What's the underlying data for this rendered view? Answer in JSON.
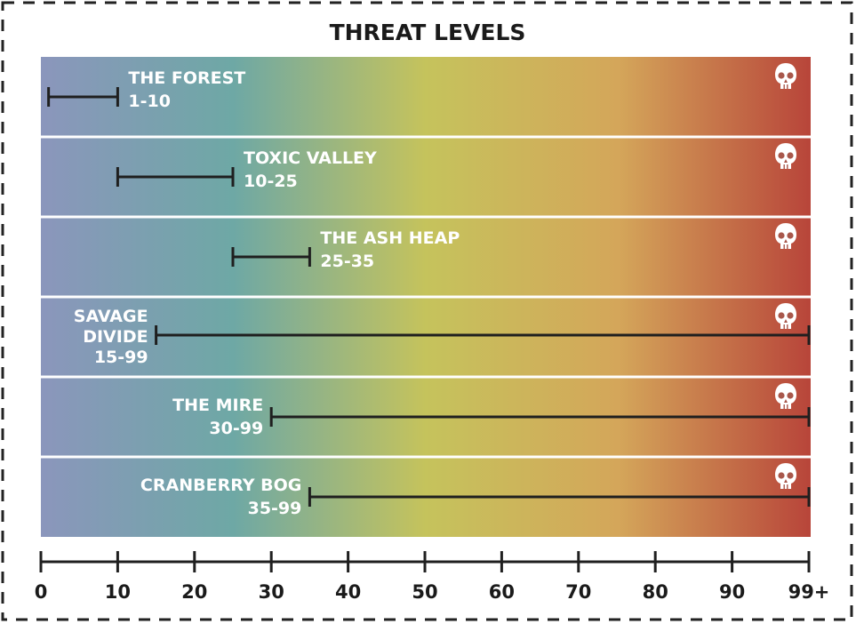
{
  "chart_data": {
    "type": "range",
    "title": "THREAT LEVELS",
    "xlim": [
      0,
      100
    ],
    "ticks": [
      {
        "value": 0,
        "label": "0"
      },
      {
        "value": 10,
        "label": "10"
      },
      {
        "value": 20,
        "label": "20"
      },
      {
        "value": 30,
        "label": "30"
      },
      {
        "value": 40,
        "label": "40"
      },
      {
        "value": 50,
        "label": "50"
      },
      {
        "value": 60,
        "label": "60"
      },
      {
        "value": 70,
        "label": "70"
      },
      {
        "value": 80,
        "label": "80"
      },
      {
        "value": 90,
        "label": "90"
      },
      {
        "value": 100,
        "label": "99+"
      }
    ],
    "gradient_colors": [
      "#8b96bc",
      "#6ea8a5",
      "#c5c35c",
      "#d4a65a",
      "#b8453a"
    ],
    "icon": "skull-icon",
    "rows": [
      {
        "name": [
          "THE FOREST"
        ],
        "range_label": "1-10",
        "min": 1,
        "max": 10
      },
      {
        "name": [
          "TOXIC VALLEY"
        ],
        "range_label": "10-25",
        "min": 10,
        "max": 25
      },
      {
        "name": [
          "THE ASH HEAP"
        ],
        "range_label": "25-35",
        "min": 25,
        "max": 35
      },
      {
        "name": [
          "SAVAGE",
          "DIVIDE"
        ],
        "range_label": "15-99",
        "min": 15,
        "max": 100
      },
      {
        "name": [
          "THE MIRE"
        ],
        "range_label": "30-99",
        "min": 30,
        "max": 100
      },
      {
        "name": [
          "CRANBERRY BOG"
        ],
        "range_label": "35-99",
        "min": 35,
        "max": 100
      }
    ]
  }
}
